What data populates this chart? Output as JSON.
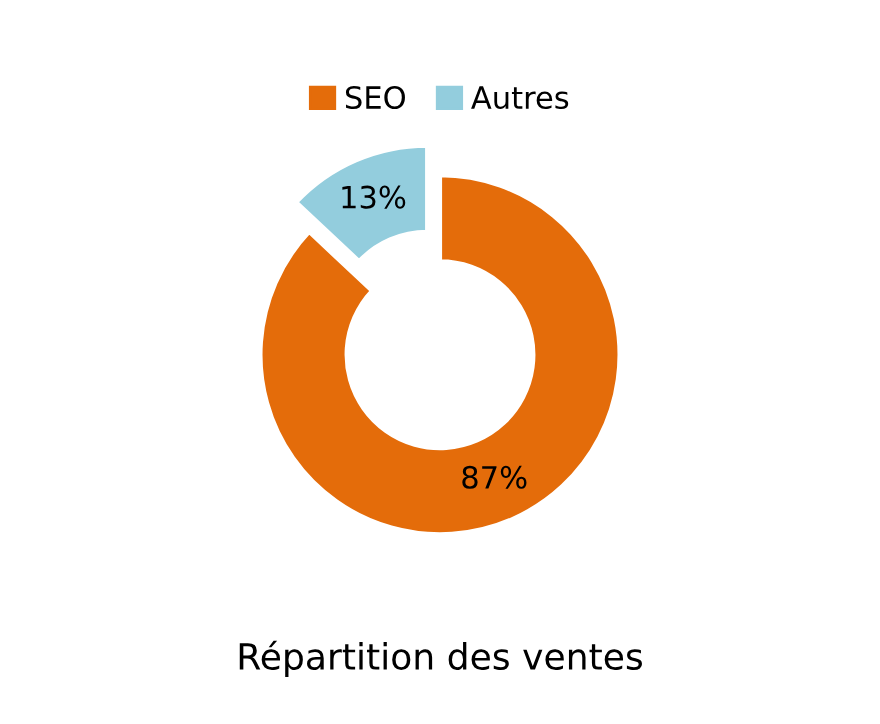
{
  "chart_data": {
    "type": "donut",
    "title": "Répartition des ventes",
    "categories": [
      "SEO",
      "Autres"
    ],
    "values": [
      87,
      13
    ],
    "colors": [
      "#e46c0a",
      "#93cddd"
    ],
    "value_labels": [
      "87%",
      "13%"
    ],
    "legend": "top"
  }
}
